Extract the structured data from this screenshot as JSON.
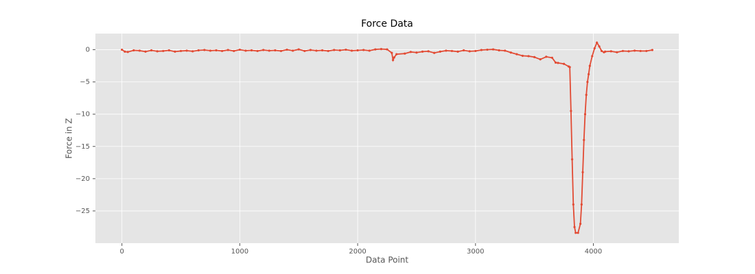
{
  "chart_data": {
    "type": "line",
    "title": "Force Data",
    "x_label": "Data Point",
    "y_label": "Force in Z",
    "color": "#E24A33",
    "grid": true,
    "x": [
      0,
      25,
      50,
      100,
      150,
      200,
      250,
      300,
      350,
      400,
      450,
      500,
      550,
      600,
      650,
      700,
      750,
      800,
      850,
      900,
      950,
      1000,
      1050,
      1100,
      1150,
      1200,
      1250,
      1300,
      1350,
      1400,
      1450,
      1500,
      1550,
      1600,
      1650,
      1700,
      1750,
      1800,
      1850,
      1900,
      1950,
      2000,
      2050,
      2100,
      2150,
      2200,
      2250,
      2290,
      2300,
      2310,
      2330,
      2400,
      2450,
      2500,
      2550,
      2600,
      2650,
      2700,
      2750,
      2800,
      2850,
      2900,
      2950,
      3000,
      3050,
      3100,
      3150,
      3200,
      3250,
      3300,
      3350,
      3400,
      3450,
      3500,
      3550,
      3600,
      3650,
      3680,
      3700,
      3750,
      3790,
      3800,
      3810,
      3820,
      3830,
      3840,
      3850,
      3870,
      3890,
      3900,
      3910,
      3920,
      3930,
      3940,
      3950,
      3960,
      3970,
      3990,
      4010,
      4030,
      4050,
      4070,
      4090,
      4100,
      4150,
      4200,
      4250,
      4300,
      4350,
      4400,
      4450,
      4500
    ],
    "values": [
      0.0,
      -0.3,
      -0.35,
      -0.1,
      -0.15,
      -0.3,
      -0.1,
      -0.25,
      -0.2,
      -0.1,
      -0.3,
      -0.2,
      -0.15,
      -0.25,
      -0.1,
      -0.05,
      -0.15,
      -0.1,
      -0.2,
      -0.05,
      -0.2,
      0.0,
      -0.15,
      -0.1,
      -0.2,
      -0.05,
      -0.15,
      -0.1,
      -0.2,
      0.0,
      -0.15,
      0.05,
      -0.2,
      -0.05,
      -0.15,
      -0.1,
      -0.2,
      -0.05,
      -0.1,
      0.0,
      -0.15,
      -0.1,
      -0.05,
      -0.15,
      0.05,
      0.1,
      0.05,
      -0.5,
      -1.6,
      -1.2,
      -0.7,
      -0.6,
      -0.35,
      -0.45,
      -0.3,
      -0.25,
      -0.5,
      -0.3,
      -0.15,
      -0.2,
      -0.3,
      -0.1,
      -0.25,
      -0.2,
      -0.05,
      0.0,
      0.05,
      -0.1,
      -0.15,
      -0.45,
      -0.7,
      -0.95,
      -1.0,
      -1.15,
      -1.5,
      -1.1,
      -1.25,
      -2.0,
      -2.05,
      -2.2,
      -2.6,
      -2.7,
      -9.5,
      -17,
      -24,
      -27.5,
      -28.4,
      -28.4,
      -27,
      -24,
      -19,
      -14,
      -10,
      -7,
      -5,
      -3.8,
      -2.5,
      -1.0,
      0.2,
      1.1,
      0.5,
      -0.2,
      -0.4,
      -0.3,
      -0.25,
      -0.4,
      -0.2,
      -0.25,
      -0.15,
      -0.2,
      -0.2,
      -0.05
    ],
    "xlim": [
      -225,
      4725
    ],
    "xticks": [
      0,
      1000,
      2000,
      3000,
      4000
    ],
    "ylim": [
      -30,
      2.5
    ],
    "yticks": [
      {
        "value": 0,
        "label": "0"
      },
      {
        "value": -5,
        "label": "−5"
      },
      {
        "value": -10,
        "label": "−10"
      },
      {
        "value": -15,
        "label": "−15"
      },
      {
        "value": -20,
        "label": "−20"
      },
      {
        "value": -25,
        "label": "−25"
      }
    ]
  }
}
